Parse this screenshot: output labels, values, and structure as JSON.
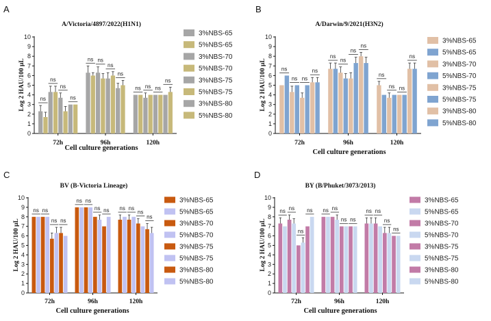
{
  "chart_data": [
    {
      "panel": "A",
      "type": "bar",
      "title": "A/Victoria/4897/2022(H1N1)",
      "xlabel": "Cell culture generations",
      "ylabel": "Log 2 HAU/100 μL",
      "ylim": [
        0,
        10
      ],
      "yticks": [
        0,
        1,
        2,
        3,
        4,
        5,
        6,
        7,
        8,
        9,
        10
      ],
      "categories": [
        "72h",
        "96h",
        "120h"
      ],
      "annotation": "ns",
      "colors": [
        "#a6a6a6",
        "#c7b97a"
      ],
      "series": [
        {
          "name": "3%NBS-65",
          "values": [
            2.3,
            6.3,
            4.0
          ],
          "err": [
            0.6,
            0.7,
            0.0
          ]
        },
        {
          "name": "5%NBS-65",
          "values": [
            1.7,
            6.0,
            4.0
          ],
          "err": [
            0.5,
            0.3,
            0.0
          ]
        },
        {
          "name": "3%NBS-70",
          "values": [
            4.3,
            6.3,
            3.7
          ],
          "err": [
            0.6,
            0.6,
            0.5
          ]
        },
        {
          "name": "5%NBS-70",
          "values": [
            4.3,
            5.7,
            4.0
          ],
          "err": [
            0.6,
            0.5,
            0.0
          ]
        },
        {
          "name": "3%NBS-75",
          "values": [
            3.7,
            5.7,
            4.0
          ],
          "err": [
            0.5,
            0.6,
            0.0
          ]
        },
        {
          "name": "5%NBS-75",
          "values": [
            2.3,
            6.0,
            4.0
          ],
          "err": [
            0.5,
            0.4,
            0.0
          ]
        },
        {
          "name": "3%NBS-80",
          "values": [
            3.0,
            4.7,
            4.0
          ],
          "err": [
            0.0,
            0.5,
            0.0
          ]
        },
        {
          "name": "5%NBS-80",
          "values": [
            3.0,
            5.0,
            4.3
          ],
          "err": [
            0.0,
            0.5,
            0.5
          ]
        }
      ]
    },
    {
      "panel": "B",
      "type": "bar",
      "title": "A/Darwin/9/2021(H3N2)",
      "xlabel": "Cell culture generations",
      "ylabel": "Log 2 HAU/100 μL",
      "ylim": [
        0,
        10
      ],
      "yticks": [
        0,
        1,
        2,
        3,
        4,
        5,
        6,
        7,
        8,
        9,
        10
      ],
      "categories": [
        "72h",
        "96h",
        "120h"
      ],
      "annotation": "ns",
      "colors": [
        "#e1c0a6",
        "#7fa4d0"
      ],
      "series": [
        {
          "name": "3%NBS-65",
          "values": [
            5.0,
            6.7,
            5.0
          ],
          "err": [
            0.0,
            0.6,
            0.4
          ]
        },
        {
          "name": "5%NBS-65",
          "values": [
            6.0,
            6.7,
            4.0
          ],
          "err": [
            0.0,
            0.6,
            0.0
          ]
        },
        {
          "name": "3%NBS-70",
          "values": [
            4.3,
            6.3,
            3.7
          ],
          "err": [
            0.6,
            0.6,
            0.5
          ]
        },
        {
          "name": "5%NBS-70",
          "values": [
            5.0,
            5.7,
            4.0
          ],
          "err": [
            0.0,
            0.5,
            0.0
          ]
        },
        {
          "name": "3%NBS-75",
          "values": [
            3.7,
            5.7,
            4.0
          ],
          "err": [
            0.5,
            0.6,
            0.0
          ]
        },
        {
          "name": "5%NBS-75",
          "values": [
            5.0,
            7.3,
            4.0
          ],
          "err": [
            0.0,
            0.6,
            0.0
          ]
        },
        {
          "name": "3%NBS-80",
          "values": [
            5.3,
            8.0,
            6.7
          ],
          "err": [
            0.5,
            0.4,
            0.6
          ]
        },
        {
          "name": "5%NBS-80",
          "values": [
            5.3,
            7.3,
            6.7
          ],
          "err": [
            0.5,
            0.6,
            0.6
          ]
        }
      ]
    },
    {
      "panel": "C",
      "type": "bar",
      "title": "BV (B-Victoria Lineage)",
      "xlabel": "Cell culture generations",
      "ylabel": "Log 2 HAU/100 μL",
      "ylim": [
        0,
        10
      ],
      "yticks": [
        0,
        1,
        2,
        3,
        4,
        5,
        6,
        7,
        8,
        9,
        10
      ],
      "categories": [
        "72h",
        "96h",
        "120h"
      ],
      "annotation": "ns",
      "colors": [
        "#c85a10",
        "#c0c2f2"
      ],
      "series": [
        {
          "name": "3%NBS-65",
          "values": [
            8.0,
            9.0,
            7.7
          ],
          "err": [
            0.0,
            0.0,
            0.5
          ]
        },
        {
          "name": "5%NBS-65",
          "values": [
            8.0,
            9.0,
            8.0
          ],
          "err": [
            0.0,
            0.0,
            0.0
          ]
        },
        {
          "name": "3%NBS-70",
          "values": [
            8.0,
            9.0,
            7.7
          ],
          "err": [
            0.0,
            0.0,
            0.5
          ]
        },
        {
          "name": "5%NBS-70",
          "values": [
            8.0,
            9.0,
            8.0
          ],
          "err": [
            0.0,
            0.0,
            0.0
          ]
        },
        {
          "name": "3%NBS-75",
          "values": [
            5.7,
            8.0,
            7.3
          ],
          "err": [
            0.6,
            0.0,
            0.5
          ]
        },
        {
          "name": "5%NBS-75",
          "values": [
            6.3,
            7.7,
            7.0
          ],
          "err": [
            0.6,
            0.5,
            0.0
          ]
        },
        {
          "name": "3%NBS-80",
          "values": [
            6.3,
            7.0,
            6.7
          ],
          "err": [
            0.6,
            0.0,
            0.6
          ]
        },
        {
          "name": "5%NBS-80",
          "values": [
            6.0,
            8.0,
            6.3
          ],
          "err": [
            0.0,
            0.0,
            0.6
          ]
        }
      ]
    },
    {
      "panel": "D",
      "type": "bar",
      "title": "BY (B/Phuket/3073/2013)",
      "xlabel": "Cell culture generations",
      "ylabel": "Log 2 HAU/100 μL",
      "ylim": [
        0,
        10
      ],
      "yticks": [
        0,
        1,
        2,
        3,
        4,
        5,
        6,
        7,
        8,
        9,
        10
      ],
      "categories": [
        "72h",
        "96h",
        "120h"
      ],
      "annotation": "ns",
      "colors": [
        "#c27ba7",
        "#c9d8f0"
      ],
      "series": [
        {
          "name": "3%NBS-65",
          "values": [
            7.3,
            8.0,
            7.3
          ],
          "err": [
            0.6,
            0.0,
            0.6
          ]
        },
        {
          "name": "5%NBS-65",
          "values": [
            7.0,
            8.0,
            7.3
          ],
          "err": [
            0.0,
            0.0,
            0.6
          ]
        },
        {
          "name": "3%NBS-70",
          "values": [
            7.7,
            8.0,
            7.3
          ],
          "err": [
            0.5,
            0.0,
            0.6
          ]
        },
        {
          "name": "5%NBS-70",
          "values": [
            7.3,
            7.7,
            7.0
          ],
          "err": [
            0.5,
            0.5,
            0.0
          ]
        },
        {
          "name": "3%NBS-75",
          "values": [
            5.0,
            7.0,
            6.3
          ],
          "err": [
            0.0,
            0.0,
            0.6
          ]
        },
        {
          "name": "5%NBS-75",
          "values": [
            5.3,
            7.0,
            6.3
          ],
          "err": [
            0.5,
            0.0,
            0.6
          ]
        },
        {
          "name": "3%NBS-80",
          "values": [
            7.0,
            7.0,
            6.0
          ],
          "err": [
            0.0,
            0.0,
            0.0
          ]
        },
        {
          "name": "5%NBS-80",
          "values": [
            8.0,
            7.0,
            6.0
          ],
          "err": [
            0.0,
            0.0,
            0.0
          ]
        }
      ]
    }
  ]
}
